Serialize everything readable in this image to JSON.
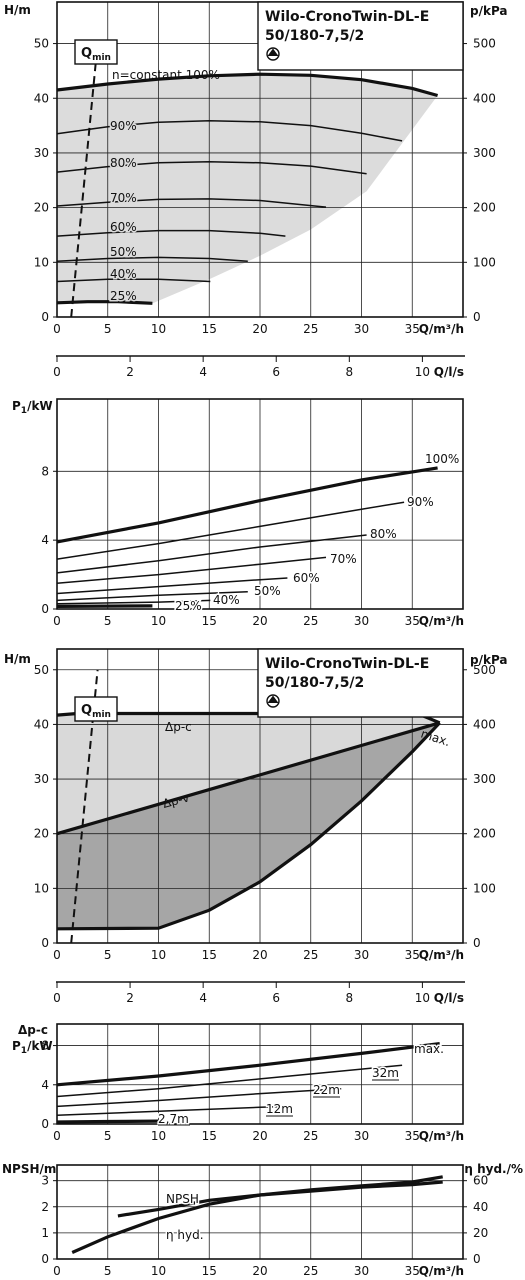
{
  "product": {
    "name": "Wilo-CronoTwin-DL-E",
    "model": "50/180-7,5/2"
  },
  "qmin_label": "Q",
  "qmin_sub": "min",
  "axes": {
    "H": "H/m",
    "p": "p/kPa",
    "Q_m3h": "Q/m³/h",
    "Q_ls": "Q/l/s",
    "P1": "P1/kW",
    "dpc_top": "Δp-c",
    "dpc_p1": "P1/kW",
    "NPSH": "NPSH/m",
    "eta": "η hyd./%"
  },
  "chart_data": [
    {
      "type": "line",
      "id": "head_variable_speed",
      "xlabel": "Q/m³/h",
      "ylabel": "H/m",
      "y2label": "p/kPa",
      "xlim": [
        0,
        40
      ],
      "ylim": [
        0,
        55
      ],
      "y2lim": [
        0,
        550
      ],
      "xticks": [
        0,
        5,
        10,
        15,
        20,
        25,
        30,
        35
      ],
      "yticks": [
        0,
        10,
        20,
        30,
        40,
        50
      ],
      "y2ticks": [
        0,
        100,
        200,
        300,
        400,
        500
      ],
      "grid": true,
      "series": [
        {
          "name": "n=constant 100%",
          "x": [
            0,
            5,
            10,
            15,
            20,
            25,
            30,
            35,
            37.5
          ],
          "y": [
            41.5,
            42.6,
            43.5,
            44.1,
            44.4,
            44.2,
            43.4,
            41.8,
            40.5
          ]
        },
        {
          "name": "90%",
          "x": [
            0,
            5,
            10,
            15,
            20,
            25,
            30,
            34
          ],
          "y": [
            33.5,
            34.8,
            35.6,
            35.9,
            35.7,
            35.0,
            33.6,
            32.2
          ]
        },
        {
          "name": "80%",
          "x": [
            0,
            5,
            10,
            15,
            20,
            25,
            30.5
          ],
          "y": [
            26.5,
            27.5,
            28.2,
            28.4,
            28.2,
            27.6,
            26.2
          ]
        },
        {
          "name": "70%",
          "x": [
            0,
            5,
            10,
            15,
            20,
            26.5
          ],
          "y": [
            20.3,
            21.0,
            21.5,
            21.6,
            21.3,
            20.1
          ]
        },
        {
          "name": "60%",
          "x": [
            0,
            5,
            10,
            15,
            20,
            22.5
          ],
          "y": [
            14.8,
            15.4,
            15.8,
            15.8,
            15.3,
            14.8
          ]
        },
        {
          "name": "50%",
          "x": [
            0,
            5,
            10,
            15,
            18.8
          ],
          "y": [
            10.2,
            10.7,
            10.9,
            10.7,
            10.2
          ]
        },
        {
          "name": "40%",
          "x": [
            0,
            5,
            10,
            15.1
          ],
          "y": [
            6.5,
            6.9,
            6.9,
            6.5
          ]
        },
        {
          "name": "25%",
          "x": [
            0,
            3,
            6,
            9.4
          ],
          "y": [
            2.6,
            2.8,
            2.8,
            2.5
          ]
        },
        {
          "name": "Qmin",
          "x": [
            1.4,
            4.0
          ],
          "y": [
            0,
            50
          ]
        }
      ]
    },
    {
      "type": "line",
      "id": "power_variable_speed",
      "xlabel": "Q/m³/h",
      "ylabel": "P1/kW",
      "xlim": [
        0,
        40
      ],
      "ylim": [
        0,
        10
      ],
      "xticks": [
        0,
        5,
        10,
        15,
        20,
        25,
        30,
        35
      ],
      "yticks": [
        0,
        4,
        8
      ],
      "grid": true,
      "series": [
        {
          "name": "100%",
          "x": [
            0,
            10,
            20,
            30,
            37.5
          ],
          "y": [
            3.9,
            5.0,
            6.3,
            7.5,
            8.2
          ]
        },
        {
          "name": "90%",
          "x": [
            0,
            10,
            20,
            30,
            34.2
          ],
          "y": [
            2.9,
            3.8,
            4.8,
            5.8,
            6.2
          ]
        },
        {
          "name": "80%",
          "x": [
            0,
            10,
            20,
            30.5
          ],
          "y": [
            2.1,
            2.8,
            3.6,
            4.3
          ]
        },
        {
          "name": "70%",
          "x": [
            0,
            10,
            20,
            26.5
          ],
          "y": [
            1.5,
            2.0,
            2.6,
            3.0
          ]
        },
        {
          "name": "60%",
          "x": [
            0,
            10,
            20,
            22.7
          ],
          "y": [
            0.9,
            1.3,
            1.7,
            1.8
          ]
        },
        {
          "name": "50%",
          "x": [
            0,
            10,
            18.8
          ],
          "y": [
            0.5,
            0.8,
            1.0
          ]
        },
        {
          "name": "40%",
          "x": [
            0,
            10,
            15.1
          ],
          "y": [
            0.3,
            0.4,
            0.5
          ]
        },
        {
          "name": "25%",
          "x": [
            0,
            9.4
          ],
          "y": [
            0.15,
            0.18
          ]
        }
      ]
    },
    {
      "type": "area",
      "id": "head_control_modes",
      "xlabel": "Q/m³/h",
      "ylabel": "H/m",
      "y2label": "p/kPa",
      "xlim": [
        0,
        40
      ],
      "ylim": [
        0,
        55
      ],
      "y2lim": [
        0,
        550
      ],
      "xticks": [
        0,
        5,
        10,
        15,
        20,
        25,
        30,
        35
      ],
      "yticks": [
        0,
        10,
        20,
        30,
        40,
        50
      ],
      "y2ticks": [
        0,
        100,
        200,
        300,
        400,
        500
      ],
      "grid": true,
      "series": [
        {
          "name": "Δp-c",
          "x": [
            0,
            2,
            35.5,
            37.7
          ],
          "y": [
            41.7,
            42,
            42,
            40.3
          ]
        },
        {
          "name": "Δp-v",
          "x": [
            0,
            37.7
          ],
          "y": [
            20,
            40.3
          ]
        },
        {
          "name": "min",
          "x": [
            0,
            10,
            15,
            20,
            25,
            30,
            35,
            37.7
          ],
          "y": [
            2.6,
            2.7,
            6.0,
            11.2,
            18.0,
            26.0,
            35.0,
            40.3
          ]
        },
        {
          "name": "max.",
          "x": [
            37.7
          ],
          "y": [
            40.3
          ]
        },
        {
          "name": "Qmin",
          "x": [
            1.4,
            4.0
          ],
          "y": [
            0,
            50
          ]
        }
      ]
    },
    {
      "type": "line",
      "id": "power_control_modes",
      "xlabel": "Q/m³/h",
      "ylabel": "P1/kW",
      "xlim": [
        0,
        40
      ],
      "ylim": [
        0,
        10
      ],
      "xticks": [
        0,
        5,
        10,
        15,
        20,
        25,
        30,
        35
      ],
      "yticks": [
        0,
        4,
        8
      ],
      "grid": true,
      "series": [
        {
          "name": "max.",
          "x": [
            0,
            10,
            20,
            30,
            37.7
          ],
          "y": [
            4.0,
            4.9,
            6.0,
            7.2,
            8.2
          ]
        },
        {
          "name": "32m",
          "x": [
            0,
            10,
            20,
            30,
            34
          ],
          "y": [
            2.8,
            3.6,
            4.6,
            5.6,
            6.0
          ]
        },
        {
          "name": "22m",
          "x": [
            0,
            10,
            20,
            28
          ],
          "y": [
            1.8,
            2.4,
            3.1,
            3.6
          ]
        },
        {
          "name": "12m",
          "x": [
            0,
            10,
            20,
            23
          ],
          "y": [
            0.9,
            1.3,
            1.7,
            1.8
          ]
        },
        {
          "name": "2,7m",
          "x": [
            0,
            5,
            10
          ],
          "y": [
            0.2,
            0.25,
            0.3
          ]
        }
      ]
    },
    {
      "type": "line",
      "id": "npsh_efficiency",
      "xlabel": "Q/m³/h",
      "ylabel": "NPSH/m",
      "y2label": "η hyd./%",
      "xlim": [
        0,
        40
      ],
      "ylim": [
        0,
        3.5
      ],
      "y2lim": [
        0,
        70
      ],
      "xticks": [
        0,
        5,
        10,
        15,
        20,
        25,
        30,
        35
      ],
      "yticks": [
        0,
        1,
        2,
        3
      ],
      "y2ticks": [
        0,
        20,
        40,
        60
      ],
      "grid": true,
      "series": [
        {
          "name": "NPSH",
          "axis": "left",
          "x": [
            6,
            10,
            15,
            20,
            25,
            30,
            35,
            38
          ],
          "y": [
            1.65,
            1.9,
            2.25,
            2.45,
            2.6,
            2.75,
            2.85,
            2.95
          ]
        },
        {
          "name": "η hyd.",
          "axis": "right",
          "x": [
            1.5,
            5,
            10,
            15,
            20,
            25,
            30,
            35,
            38
          ],
          "y": [
            5,
            17,
            31,
            42,
            49,
            53,
            56,
            59,
            63
          ]
        }
      ]
    }
  ]
}
